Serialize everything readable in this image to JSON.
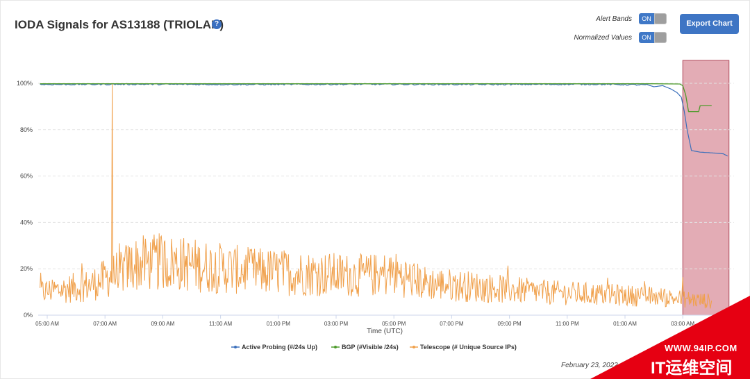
{
  "header": {
    "title": "IODA Signals for AS13188 (TRIOLAN)",
    "help_glyph": "?"
  },
  "toggles": [
    {
      "label": "Alert Bands",
      "state": "ON"
    },
    {
      "label": "Normalized Values",
      "state": "ON"
    }
  ],
  "export_label": "Export Chart",
  "footer_date": "February 23, 2022",
  "watermark": {
    "url": "WWW.94IP.COM",
    "name": "IT运维空间"
  },
  "colors": {
    "active_probing": "#3b6fba",
    "bgp": "#4c9a2a",
    "telescope": "#f0a04b",
    "alert_band": "#c75a6c"
  },
  "chart_data": {
    "type": "line",
    "xlabel": "Time (UTC)",
    "ylabel": "",
    "ylim": [
      0,
      100
    ],
    "x_tick_labels": [
      "05:00 AM",
      "07:00 AM",
      "09:00 AM",
      "11:00 AM",
      "01:00 PM",
      "03:00 PM",
      "05:00 PM",
      "07:00 PM",
      "09:00 PM",
      "11:00 PM",
      "01:00 AM",
      "03:00 AM"
    ],
    "y_tick_labels": [
      "0%",
      "20%",
      "40%",
      "60%",
      "80%",
      "100%"
    ],
    "x_range_hours": [
      4.75,
      28.6
    ],
    "alert_band": [
      27.0,
      28.6
    ],
    "grid": true,
    "legend_position": "bottom",
    "series": [
      {
        "name": "Active Probing (#/24s Up)",
        "color_key": "active_probing",
        "points": [
          [
            4.75,
            99.5
          ],
          [
            8,
            99.6
          ],
          [
            12,
            99.5
          ],
          [
            16,
            99.6
          ],
          [
            20,
            99.5
          ],
          [
            24,
            99.6
          ],
          [
            25.8,
            99.3
          ],
          [
            26.0,
            98.5
          ],
          [
            26.3,
            99.0
          ],
          [
            26.6,
            97.5
          ],
          [
            26.8,
            96
          ],
          [
            26.95,
            94
          ],
          [
            27.05,
            88
          ],
          [
            27.15,
            80
          ],
          [
            27.3,
            71
          ],
          [
            27.6,
            70.3
          ],
          [
            28.0,
            70.0
          ],
          [
            28.4,
            69.6
          ],
          [
            28.6,
            68.3
          ]
        ]
      },
      {
        "name": "BGP (#Visible /24s)",
        "color_key": "bgp",
        "points": [
          [
            4.75,
            99.8
          ],
          [
            12,
            99.8
          ],
          [
            20,
            99.8
          ],
          [
            26.0,
            99.8
          ],
          [
            26.9,
            99.7
          ],
          [
            27.0,
            99.0
          ],
          [
            27.1,
            95
          ],
          [
            27.2,
            87.8
          ],
          [
            27.55,
            87.8
          ],
          [
            27.6,
            90.3
          ],
          [
            28.0,
            90.3
          ]
        ]
      },
      {
        "name": "Telescope (# Unique Source IPs)",
        "color_key": "telescope",
        "spike": {
          "x": 7.25,
          "y": 100
        },
        "profile": [
          [
            4.75,
            10
          ],
          [
            5.5,
            11
          ],
          [
            6.5,
            13
          ],
          [
            7.25,
            17
          ],
          [
            8.0,
            22
          ],
          [
            9.0,
            23
          ],
          [
            10.5,
            21
          ],
          [
            12.0,
            19
          ],
          [
            14.0,
            18
          ],
          [
            16.0,
            17
          ],
          [
            17.0,
            18
          ],
          [
            18.0,
            14
          ],
          [
            20.0,
            12
          ],
          [
            22.0,
            10
          ],
          [
            24.0,
            9
          ],
          [
            26.0,
            8
          ],
          [
            27.0,
            7
          ],
          [
            28.0,
            6
          ]
        ]
      }
    ]
  }
}
